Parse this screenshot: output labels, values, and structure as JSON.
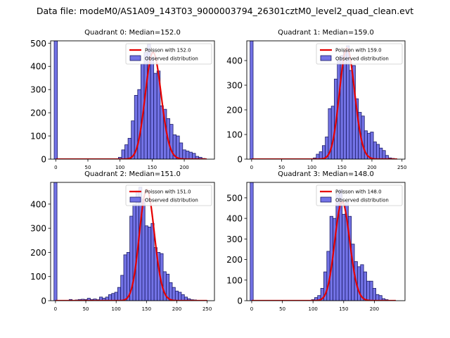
{
  "figure_title": "Data file: modeM0/AS1A09_143T03_9000003794_26301cztM0_level2_quad_clean.evt",
  "colors": {
    "bar_fill": "#7373e6",
    "bar_edge": "#1a1a66",
    "poisson_line": "#e60000",
    "axis": "#000000",
    "background": "#ffffff"
  },
  "chart_data": [
    {
      "type": "bar",
      "title": "Quadrant 0: Median=152.0",
      "legend": [
        "Poisson with 152.0",
        "Observed distribution"
      ],
      "legend_position": "top-right",
      "xlim": [
        -8,
        247
      ],
      "ylim": [
        0,
        510
      ],
      "xticks": [
        0,
        50,
        100,
        150,
        200
      ],
      "yticks": [
        0,
        100,
        200,
        300,
        400,
        500
      ],
      "bin_width": 5,
      "bins": [
        {
          "x": 0,
          "y": 510
        },
        {
          "x": 100,
          "y": 8
        },
        {
          "x": 105,
          "y": 40
        },
        {
          "x": 110,
          "y": 62
        },
        {
          "x": 115,
          "y": 90
        },
        {
          "x": 120,
          "y": 165
        },
        {
          "x": 125,
          "y": 275
        },
        {
          "x": 130,
          "y": 300
        },
        {
          "x": 135,
          "y": 410
        },
        {
          "x": 140,
          "y": 460
        },
        {
          "x": 145,
          "y": 495
        },
        {
          "x": 150,
          "y": 440
        },
        {
          "x": 155,
          "y": 370
        },
        {
          "x": 160,
          "y": 380
        },
        {
          "x": 165,
          "y": 230
        },
        {
          "x": 170,
          "y": 215
        },
        {
          "x": 175,
          "y": 175
        },
        {
          "x": 180,
          "y": 150
        },
        {
          "x": 185,
          "y": 105
        },
        {
          "x": 190,
          "y": 100
        },
        {
          "x": 195,
          "y": 70
        },
        {
          "x": 200,
          "y": 40
        },
        {
          "x": 205,
          "y": 35
        },
        {
          "x": 210,
          "y": 30
        },
        {
          "x": 215,
          "y": 25
        },
        {
          "x": 220,
          "y": 12
        },
        {
          "x": 225,
          "y": 8
        },
        {
          "x": 230,
          "y": 3
        }
      ],
      "poisson": {
        "mean": 152.0,
        "peak": 460,
        "xmax": 235
      }
    },
    {
      "type": "bar",
      "title": "Quadrant 1: Median=159.0",
      "legend": [
        "Poisson with 159.0",
        "Observed distribution"
      ],
      "legend_position": "top-right",
      "xlim": [
        -8,
        255
      ],
      "ylim": [
        0,
        480
      ],
      "xticks": [
        0,
        50,
        100,
        150,
        200,
        250
      ],
      "yticks": [
        0,
        100,
        200,
        300,
        400
      ],
      "bin_width": 5,
      "bins": [
        {
          "x": 0,
          "y": 480
        },
        {
          "x": 105,
          "y": 5
        },
        {
          "x": 110,
          "y": 20
        },
        {
          "x": 115,
          "y": 30
        },
        {
          "x": 120,
          "y": 55
        },
        {
          "x": 125,
          "y": 90
        },
        {
          "x": 130,
          "y": 205
        },
        {
          "x": 135,
          "y": 215
        },
        {
          "x": 140,
          "y": 325
        },
        {
          "x": 145,
          "y": 400
        },
        {
          "x": 150,
          "y": 420
        },
        {
          "x": 155,
          "y": 440
        },
        {
          "x": 160,
          "y": 460
        },
        {
          "x": 165,
          "y": 360
        },
        {
          "x": 170,
          "y": 380
        },
        {
          "x": 175,
          "y": 245
        },
        {
          "x": 180,
          "y": 190
        },
        {
          "x": 185,
          "y": 175
        },
        {
          "x": 190,
          "y": 115
        },
        {
          "x": 195,
          "y": 105
        },
        {
          "x": 200,
          "y": 110
        },
        {
          "x": 205,
          "y": 70
        },
        {
          "x": 210,
          "y": 60
        },
        {
          "x": 215,
          "y": 45
        },
        {
          "x": 220,
          "y": 35
        },
        {
          "x": 225,
          "y": 15
        },
        {
          "x": 230,
          "y": 5
        },
        {
          "x": 235,
          "y": 3
        }
      ],
      "poisson": {
        "mean": 159.0,
        "peak": 450,
        "xmax": 242
      }
    },
    {
      "type": "bar",
      "title": "Quadrant 2: Median=151.0",
      "legend": [
        "Poisson with 151.0",
        "Observed distribution"
      ],
      "legend_position": "top-right",
      "xlim": [
        -8,
        262
      ],
      "ylim": [
        0,
        490
      ],
      "xticks": [
        0,
        50,
        100,
        150,
        200,
        250
      ],
      "yticks": [
        0,
        100,
        200,
        300,
        400
      ],
      "bin_width": 5,
      "bins": [
        {
          "x": 0,
          "y": 490
        },
        {
          "x": 25,
          "y": 5
        },
        {
          "x": 35,
          "y": 3
        },
        {
          "x": 40,
          "y": 5
        },
        {
          "x": 45,
          "y": 6
        },
        {
          "x": 50,
          "y": 5
        },
        {
          "x": 55,
          "y": 10
        },
        {
          "x": 60,
          "y": 5
        },
        {
          "x": 65,
          "y": 7
        },
        {
          "x": 70,
          "y": 4
        },
        {
          "x": 75,
          "y": 15
        },
        {
          "x": 80,
          "y": 10
        },
        {
          "x": 85,
          "y": 15
        },
        {
          "x": 90,
          "y": 25
        },
        {
          "x": 95,
          "y": 30
        },
        {
          "x": 100,
          "y": 35
        },
        {
          "x": 105,
          "y": 55
        },
        {
          "x": 110,
          "y": 105
        },
        {
          "x": 115,
          "y": 190
        },
        {
          "x": 120,
          "y": 200
        },
        {
          "x": 125,
          "y": 350
        },
        {
          "x": 130,
          "y": 400
        },
        {
          "x": 135,
          "y": 455
        },
        {
          "x": 140,
          "y": 470
        },
        {
          "x": 145,
          "y": 420
        },
        {
          "x": 150,
          "y": 310
        },
        {
          "x": 155,
          "y": 305
        },
        {
          "x": 160,
          "y": 320
        },
        {
          "x": 165,
          "y": 220
        },
        {
          "x": 170,
          "y": 200
        },
        {
          "x": 175,
          "y": 195
        },
        {
          "x": 180,
          "y": 120
        },
        {
          "x": 185,
          "y": 110
        },
        {
          "x": 190,
          "y": 75
        },
        {
          "x": 195,
          "y": 55
        },
        {
          "x": 200,
          "y": 40
        },
        {
          "x": 205,
          "y": 35
        },
        {
          "x": 210,
          "y": 25
        },
        {
          "x": 215,
          "y": 15
        },
        {
          "x": 220,
          "y": 8
        },
        {
          "x": 225,
          "y": 4
        },
        {
          "x": 230,
          "y": 3
        }
      ],
      "poisson": {
        "mean": 151.0,
        "peak": 460,
        "xmax": 250
      }
    },
    {
      "type": "bar",
      "title": "Quadrant 3: Median=148.0",
      "legend": [
        "Poisson with 148.0",
        "Observed distribution"
      ],
      "legend_position": "top-right",
      "xlim": [
        -8,
        250
      ],
      "ylim": [
        0,
        575
      ],
      "xticks": [
        0,
        50,
        100,
        150,
        200
      ],
      "yticks": [
        0,
        100,
        200,
        300,
        400,
        500
      ],
      "bin_width": 5,
      "bins": [
        {
          "x": 0,
          "y": 575
        },
        {
          "x": 100,
          "y": 5
        },
        {
          "x": 105,
          "y": 15
        },
        {
          "x": 110,
          "y": 25
        },
        {
          "x": 115,
          "y": 60
        },
        {
          "x": 120,
          "y": 140
        },
        {
          "x": 125,
          "y": 240
        },
        {
          "x": 130,
          "y": 410
        },
        {
          "x": 135,
          "y": 400
        },
        {
          "x": 140,
          "y": 520
        },
        {
          "x": 145,
          "y": 540
        },
        {
          "x": 150,
          "y": 420
        },
        {
          "x": 155,
          "y": 480
        },
        {
          "x": 160,
          "y": 410
        },
        {
          "x": 165,
          "y": 275
        },
        {
          "x": 170,
          "y": 190
        },
        {
          "x": 175,
          "y": 165
        },
        {
          "x": 180,
          "y": 175
        },
        {
          "x": 185,
          "y": 140
        },
        {
          "x": 190,
          "y": 95
        },
        {
          "x": 195,
          "y": 95
        },
        {
          "x": 200,
          "y": 60
        },
        {
          "x": 205,
          "y": 30
        },
        {
          "x": 210,
          "y": 25
        },
        {
          "x": 215,
          "y": 10
        },
        {
          "x": 220,
          "y": 5
        }
      ],
      "poisson": {
        "mean": 148.0,
        "peak": 480,
        "xmax": 235
      }
    }
  ]
}
